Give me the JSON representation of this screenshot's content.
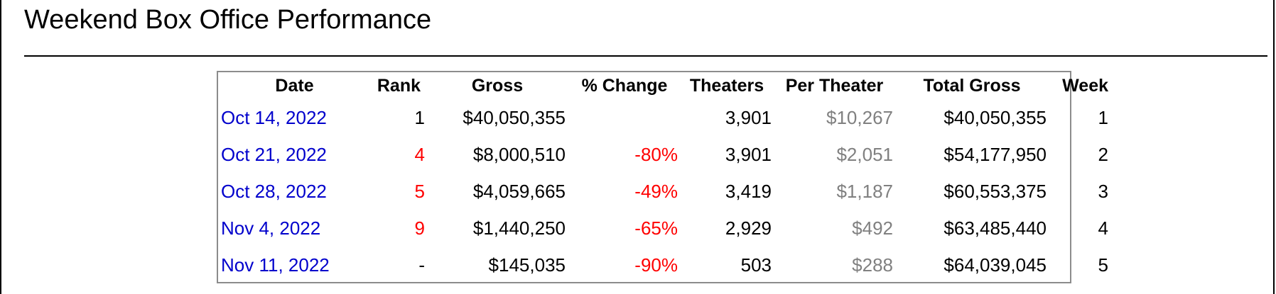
{
  "page": {
    "title": "Weekend Box Office Performance"
  },
  "table": {
    "headers": {
      "date": "Date",
      "rank": "Rank",
      "gross": "Gross",
      "change": "% Change",
      "theaters": "Theaters",
      "per_theater": "Per Theater",
      "total_gross": "Total Gross",
      "week": "Week"
    },
    "rows": [
      {
        "date": "Oct 14, 2022",
        "rank": "1",
        "gross": "$40,050,355",
        "change": "",
        "theaters": "3,901",
        "per_theater": "$10,267",
        "total_gross": "$40,050,355",
        "week": "1"
      },
      {
        "date": "Oct 21, 2022",
        "rank": "4",
        "gross": "$8,000,510",
        "change": "-80%",
        "theaters": "3,901",
        "per_theater": "$2,051",
        "total_gross": "$54,177,950",
        "week": "2"
      },
      {
        "date": "Oct 28, 2022",
        "rank": "5",
        "gross": "$4,059,665",
        "change": "-49%",
        "theaters": "3,419",
        "per_theater": "$1,187",
        "total_gross": "$60,553,375",
        "week": "3"
      },
      {
        "date": "Nov 4, 2022",
        "rank": "9",
        "gross": "$1,440,250",
        "change": "-65%",
        "theaters": "2,929",
        "per_theater": "$492",
        "total_gross": "$63,485,440",
        "week": "4"
      },
      {
        "date": "Nov 11, 2022",
        "rank": "-",
        "gross": "$145,035",
        "change": "-90%",
        "theaters": "503",
        "per_theater": "$288",
        "total_gross": "$64,039,045",
        "week": "5"
      }
    ]
  },
  "colors": {
    "link": "#0000cc",
    "negative": "#ff0000",
    "muted": "#808080",
    "table_border": "#8c8c8c"
  }
}
